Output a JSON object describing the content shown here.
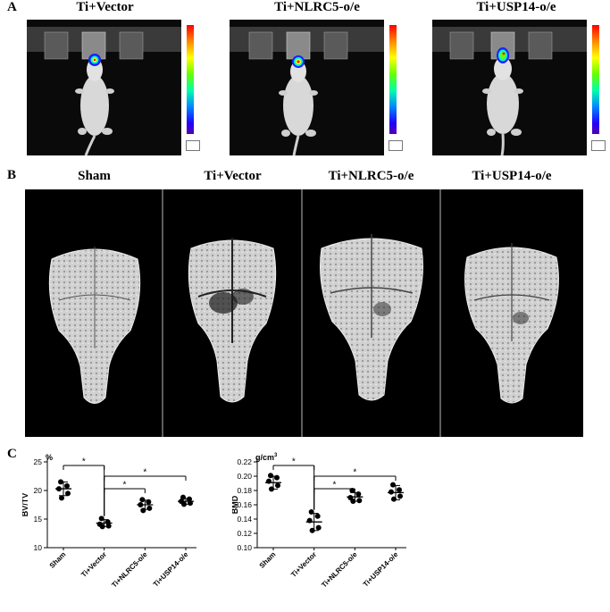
{
  "panel_a": {
    "letter": "A",
    "titles": [
      "Ti+Vector",
      "Ti+NLRC5-o/e",
      "Ti+USP14-o/e"
    ]
  },
  "panel_b": {
    "letter": "B",
    "titles": [
      "Sham",
      "Ti+Vector",
      "Ti+NLRC5-o/e",
      "Ti+USP14-o/e"
    ]
  },
  "panel_c": {
    "letter": "C"
  },
  "colors": {
    "points": "#000000",
    "background": "#ffffff",
    "image_bg": "#000000"
  },
  "chart_data": [
    {
      "type": "scatter",
      "unit_label": "%",
      "ylabel": "BV/TV",
      "categories": [
        "Sham",
        "Ti+Vector",
        "Ti+NLRC5-o/e",
        "Ti+USP14-o/e"
      ],
      "yticks": [
        10,
        15,
        20,
        25
      ],
      "ylim": [
        10,
        25
      ],
      "points": [
        [
          21.5,
          20.8,
          20.3,
          19.5,
          18.7
        ],
        [
          15.1,
          14.5,
          14.1,
          13.8,
          13.7
        ],
        [
          18.4,
          18.0,
          17.5,
          16.9,
          16.5
        ],
        [
          18.8,
          18.5,
          18.1,
          17.8,
          17.6
        ]
      ],
      "means": [
        20.3,
        14.3,
        17.5,
        18.1
      ],
      "sd": [
        1.2,
        0.6,
        0.8,
        0.5
      ],
      "significance": [
        {
          "from": 0,
          "to": 1,
          "label": "*"
        },
        {
          "from": 1,
          "to": 2,
          "label": "*"
        },
        {
          "from": 1,
          "to": 3,
          "label": "*"
        }
      ]
    },
    {
      "type": "scatter",
      "unit_label": "g/cm3",
      "ylabel": "BMD",
      "categories": [
        "Sham",
        "Ti+Vector",
        "Ti+NLRC5-o/e",
        "Ti+USP14-o/e"
      ],
      "yticks": [
        0.1,
        0.12,
        0.14,
        0.16,
        0.18,
        0.2,
        0.22
      ],
      "ytick_labels": [
        "0.10",
        "0.12",
        "0.14",
        "0.16",
        "0.18",
        "0.20",
        "0.22"
      ],
      "ylim": [
        0.1,
        0.22
      ],
      "points": [
        [
          0.201,
          0.198,
          0.193,
          0.187,
          0.182
        ],
        [
          0.15,
          0.144,
          0.138,
          0.128,
          0.124
        ],
        [
          0.18,
          0.175,
          0.17,
          0.166,
          0.165
        ],
        [
          0.188,
          0.181,
          0.178,
          0.172,
          0.168
        ]
      ],
      "means": [
        0.191,
        0.136,
        0.171,
        0.177
      ],
      "sd": [
        0.009,
        0.012,
        0.006,
        0.01
      ],
      "significance": [
        {
          "from": 0,
          "to": 1,
          "label": "*"
        },
        {
          "from": 1,
          "to": 2,
          "label": "*"
        },
        {
          "from": 1,
          "to": 3,
          "label": "*"
        }
      ]
    }
  ]
}
